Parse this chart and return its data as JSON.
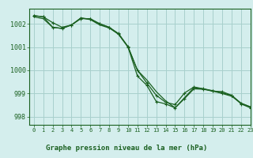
{
  "title": "Graphe pression niveau de la mer (hPa)",
  "bg_color": "#d4eeed",
  "grid_color": "#a8d0cc",
  "line_color": "#1a6020",
  "tick_color": "#1a6020",
  "xlim": [
    -0.5,
    23
  ],
  "ylim": [
    997.65,
    1002.65
  ],
  "yticks": [
    998,
    999,
    1000,
    1001,
    1002
  ],
  "xticks": [
    0,
    1,
    2,
    3,
    4,
    5,
    6,
    7,
    8,
    9,
    10,
    11,
    12,
    13,
    14,
    15,
    16,
    17,
    18,
    19,
    20,
    21,
    22,
    23
  ],
  "line1": [
    1002.35,
    1002.3,
    1002.05,
    1001.85,
    1001.95,
    1002.25,
    1002.2,
    1002.0,
    1001.85,
    1001.55,
    1001.0,
    999.75,
    999.35,
    998.65,
    998.55,
    998.38,
    998.78,
    999.2,
    999.18,
    999.1,
    999.08,
    998.92,
    998.55,
    998.38
  ],
  "line2": [
    1002.35,
    1002.3,
    1001.85,
    1001.8,
    1001.95,
    1002.22,
    1002.22,
    1002.0,
    1001.85,
    1001.58,
    1001.02,
    1000.0,
    999.45,
    998.92,
    998.62,
    998.52,
    999.02,
    999.28,
    999.2,
    999.12,
    999.02,
    998.92,
    998.58,
    998.42
  ],
  "line3": [
    1002.3,
    1002.22,
    1001.85,
    1001.8,
    1001.95,
    1002.25,
    1002.18,
    1001.95,
    1001.82,
    1001.55,
    1001.0,
    1000.0,
    999.58,
    999.08,
    998.68,
    998.38,
    998.82,
    999.25,
    999.2,
    999.1,
    999.0,
    998.88,
    998.58,
    998.42
  ],
  "label_text_color": "#1a6020",
  "spine_color": "#1a6020"
}
